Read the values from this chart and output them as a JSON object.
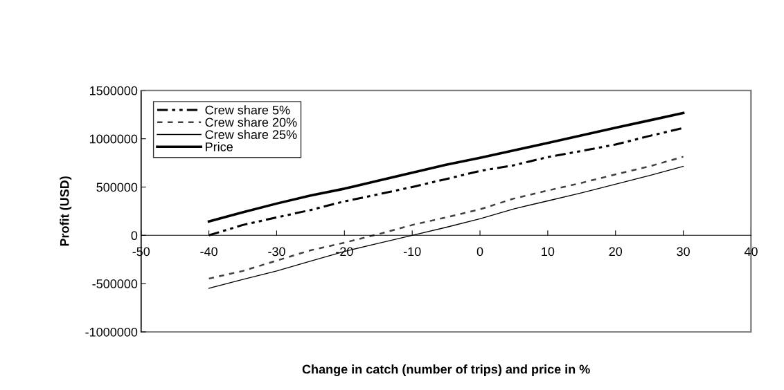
{
  "chart_data": {
    "type": "line",
    "xlabel": "Change in catch (number of trips) and price in %",
    "ylabel": "Profit (USD)",
    "x": [
      -40,
      -35,
      -30,
      -25,
      -20,
      -15,
      -10,
      -5,
      0,
      5,
      10,
      15,
      20,
      25,
      30
    ],
    "series": [
      {
        "name": "Crew share 5%",
        "color": "#000000",
        "line_style": "dashed",
        "values": [
          0,
          107000,
          186000,
          262000,
          352000,
          424000,
          500000,
          583000,
          667000,
          726000,
          810000,
          874000,
          940000,
          1029000,
          1112000
        ]
      },
      {
        "name": "Crew share 20%",
        "color": "#404040",
        "line_style": "dotted",
        "values": [
          -448000,
          -369000,
          -262000,
          -155000,
          -76000,
          12000,
          107000,
          186000,
          269000,
          381000,
          464000,
          543000,
          631000,
          714000,
          814000
        ]
      },
      {
        "name": "Crew share 25%",
        "color": "#000000",
        "line_style": "solid",
        "values": [
          -548000,
          -457000,
          -369000,
          -267000,
          -167000,
          -83000,
          0,
          83000,
          171000,
          274000,
          357000,
          440000,
          529000,
          619000,
          714000
        ]
      },
      {
        "name": "Price",
        "color": "#000000",
        "line_style": "solid",
        "values": [
          143000,
          238000,
          329000,
          412000,
          483000,
          567000,
          648000,
          731000,
          802000,
          879000,
          957000,
          1036000,
          1114000,
          1190000,
          1267000
        ]
      }
    ],
    "xlim": [
      -50,
      40
    ],
    "xticks": [
      -50,
      -40,
      -30,
      -20,
      -10,
      0,
      10,
      20,
      30,
      40
    ],
    "ylim": [
      -1000000,
      1500000
    ],
    "yticks": [
      -1000000,
      -500000,
      0,
      500000,
      1000000,
      1500000
    ],
    "grid": false,
    "legend": "top left",
    "marker": "none"
  }
}
